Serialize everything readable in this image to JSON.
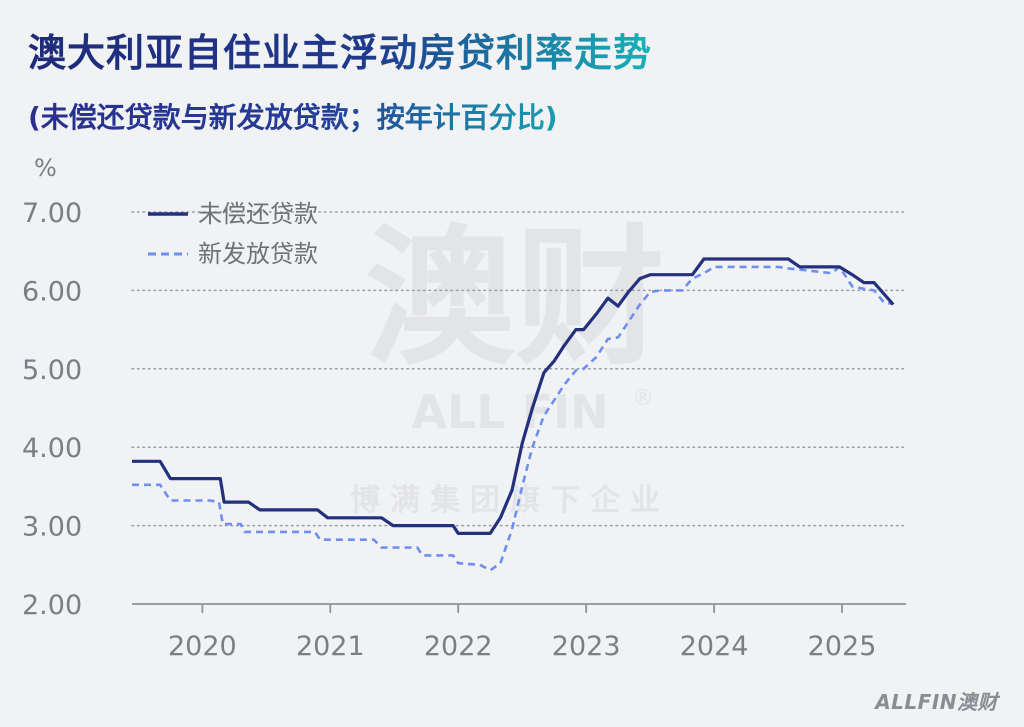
{
  "title": "澳大利亚自住业主浮动房贷利率走势",
  "subtitle": "(未偿还贷款与新发放贷款；按年计百分比)",
  "footer_logo": "ALLFIN澳财",
  "watermark": {
    "big": "澳财",
    "brand": "ALL FIN",
    "reg": "®",
    "tagline": "博满集团旗下企业"
  },
  "colors": {
    "outstanding": "#23307e",
    "new": "#6d8ff0",
    "grid": "#9a9ca2",
    "axis_text": "#7b7e85"
  },
  "chart_data": {
    "type": "line",
    "ylabel": "%",
    "ylim": [
      2.0,
      7.0
    ],
    "yticks": [
      "2.00",
      "3.00",
      "4.00",
      "5.00",
      "6.00",
      "7.00"
    ],
    "yvals": [
      2,
      3,
      4,
      5,
      6,
      7
    ],
    "xlim": [
      2019.45,
      2025.5
    ],
    "xticks": [
      "2020",
      "2021",
      "2022",
      "2023",
      "2024",
      "2025"
    ],
    "xvals": [
      2020,
      2021,
      2022,
      2023,
      2024,
      2025
    ],
    "legend": "top-left",
    "grid": "horizontal dotted",
    "series": [
      {
        "name": "未偿还贷款",
        "style": "solid",
        "points": [
          [
            2019.45,
            3.82
          ],
          [
            2019.67,
            3.82
          ],
          [
            2019.75,
            3.6
          ],
          [
            2020.14,
            3.6
          ],
          [
            2020.17,
            3.3
          ],
          [
            2020.36,
            3.3
          ],
          [
            2020.45,
            3.2
          ],
          [
            2020.9,
            3.2
          ],
          [
            2020.98,
            3.1
          ],
          [
            2021.4,
            3.1
          ],
          [
            2021.49,
            3.0
          ],
          [
            2021.96,
            3.0
          ],
          [
            2022.0,
            2.9
          ],
          [
            2022.25,
            2.9
          ],
          [
            2022.33,
            3.1
          ],
          [
            2022.42,
            3.45
          ],
          [
            2022.5,
            4.05
          ],
          [
            2022.58,
            4.5
          ],
          [
            2022.67,
            4.95
          ],
          [
            2022.75,
            5.1
          ],
          [
            2022.83,
            5.3
          ],
          [
            2022.92,
            5.5
          ],
          [
            2022.98,
            5.5
          ],
          [
            2023.08,
            5.7
          ],
          [
            2023.17,
            5.9
          ],
          [
            2023.25,
            5.8
          ],
          [
            2023.33,
            5.98
          ],
          [
            2023.42,
            6.15
          ],
          [
            2023.5,
            6.2
          ],
          [
            2023.83,
            6.2
          ],
          [
            2023.92,
            6.4
          ],
          [
            2024.58,
            6.4
          ],
          [
            2024.67,
            6.3
          ],
          [
            2024.98,
            6.3
          ],
          [
            2025.08,
            6.2
          ],
          [
            2025.17,
            6.1
          ],
          [
            2025.25,
            6.1
          ],
          [
            2025.33,
            5.95
          ],
          [
            2025.4,
            5.82
          ]
        ]
      },
      {
        "name": "新发放贷款",
        "style": "dashed",
        "points": [
          [
            2019.45,
            3.52
          ],
          [
            2019.67,
            3.52
          ],
          [
            2019.75,
            3.32
          ],
          [
            2020.06,
            3.32
          ],
          [
            2020.13,
            3.3
          ],
          [
            2020.16,
            3.02
          ],
          [
            2020.3,
            3.02
          ],
          [
            2020.33,
            2.92
          ],
          [
            2020.88,
            2.92
          ],
          [
            2020.92,
            2.82
          ],
          [
            2021.34,
            2.82
          ],
          [
            2021.4,
            2.72
          ],
          [
            2021.68,
            2.72
          ],
          [
            2021.72,
            2.62
          ],
          [
            2021.96,
            2.62
          ],
          [
            2022.0,
            2.52
          ],
          [
            2022.17,
            2.5
          ],
          [
            2022.25,
            2.43
          ],
          [
            2022.33,
            2.52
          ],
          [
            2022.42,
            2.95
          ],
          [
            2022.5,
            3.5
          ],
          [
            2022.58,
            4.0
          ],
          [
            2022.67,
            4.4
          ],
          [
            2022.75,
            4.6
          ],
          [
            2022.83,
            4.8
          ],
          [
            2022.92,
            4.98
          ],
          [
            2022.98,
            5.0
          ],
          [
            2023.08,
            5.15
          ],
          [
            2023.17,
            5.38
          ],
          [
            2023.25,
            5.4
          ],
          [
            2023.33,
            5.6
          ],
          [
            2023.42,
            5.82
          ],
          [
            2023.5,
            5.98
          ],
          [
            2023.58,
            6.0
          ],
          [
            2023.75,
            6.0
          ],
          [
            2023.83,
            6.15
          ],
          [
            2023.92,
            6.22
          ],
          [
            2024.0,
            6.3
          ],
          [
            2024.5,
            6.3
          ],
          [
            2024.58,
            6.28
          ],
          [
            2024.92,
            6.22
          ],
          [
            2024.98,
            6.3
          ],
          [
            2025.08,
            6.05
          ],
          [
            2025.17,
            6.02
          ],
          [
            2025.25,
            6.0
          ],
          [
            2025.33,
            5.84
          ],
          [
            2025.4,
            5.83
          ]
        ]
      }
    ]
  }
}
